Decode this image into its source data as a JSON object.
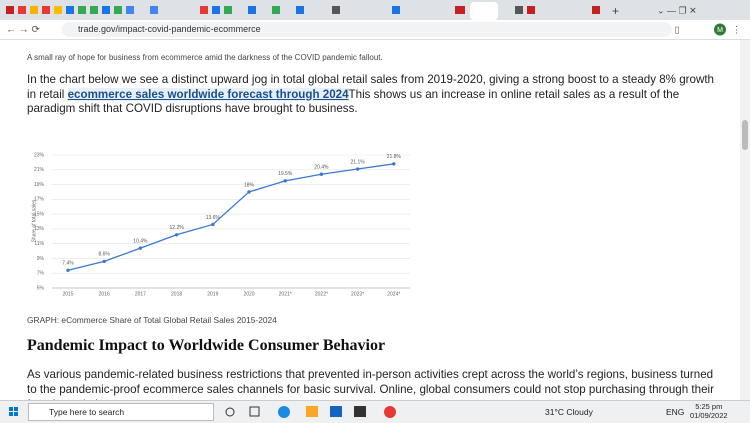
{
  "browser": {
    "url": "trade.gov/impact-covid-pandemic-ecommerce",
    "profile": "M"
  },
  "article": {
    "caption": "A small ray of hope for business from ecommerce amid the darkness of the COVID pandemic fallout.",
    "intro": {
      "before": "In the chart below we see a distinct upward jog in total global retail sales from 2019-2020, giving a strong boost to a steady 8% growth in retail ",
      "link": "ecommerce sales worldwide forecast through 2024",
      "after": "This shows us an increase in online retail sales as a result of the paradigm shift that COVID disruptions have brought to business."
    },
    "chart_caption": "GRAPH: eCommerce Share of Total Global Retail Sales 2015-2024",
    "heading": "Pandemic Impact to Worldwide Consumer Behavior",
    "body": "As various pandemic-related business restrictions that prevented in-person activities crept across the world’s regions, business turned to the pandemic-proof ecommerce sales channels for basic survival. Online, global consumers could not stop purchasing through their favorite websites"
  },
  "chart_data": {
    "type": "line",
    "y_label": "Share of total sales",
    "categories": [
      "2015",
      "2016",
      "2017",
      "2018",
      "2019",
      "2020",
      "2021*",
      "2022*",
      "2023*",
      "2024*"
    ],
    "values": [
      7.4,
      8.6,
      10.4,
      12.2,
      13.6,
      18,
      19.5,
      20.4,
      21.1,
      21.8
    ],
    "value_labels": [
      "7.4%",
      "8.6%",
      "10.4%",
      "12.2%",
      "13.6%",
      "18%",
      "19.5%",
      "20.4%",
      "21.1%",
      "21.8%"
    ],
    "color": "#3a78d4",
    "ylim": [
      5,
      23
    ],
    "yticks": [
      {
        "value": 5,
        "label": "5%"
      },
      {
        "value": 7,
        "label": "7%"
      },
      {
        "value": 9,
        "label": "9%"
      },
      {
        "value": 11,
        "label": "11%"
      },
      {
        "value": 13,
        "label": "13%"
      },
      {
        "value": 15,
        "label": "15%"
      },
      {
        "value": 17,
        "label": "17%"
      },
      {
        "value": 19,
        "label": "19%"
      },
      {
        "value": 21,
        "label": "21%"
      },
      {
        "value": 23,
        "label": "23%"
      }
    ],
    "grid": true
  },
  "taskbar": {
    "search": "Type here to search",
    "weather": "31°C  Cloudy",
    "language": "ENG",
    "time": "5:25 pm",
    "date": "01/09/2022"
  }
}
